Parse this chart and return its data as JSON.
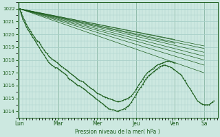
{
  "bg_color": "#cce8e0",
  "grid_color": "#a8cfc8",
  "line_color": "#1a5c1a",
  "xlabel": "Pression niveau de la mer( hPa )",
  "ylim": [
    1013.5,
    1022.5
  ],
  "yticks": [
    1014,
    1015,
    1016,
    1017,
    1018,
    1019,
    1020,
    1021,
    1022
  ],
  "days": [
    "Lun",
    "Mar",
    "Mer",
    "Jeu",
    "Ven",
    "Sa"
  ],
  "day_positions": [
    0,
    1,
    2,
    3,
    4,
    4.75
  ],
  "xlim": [
    -0.05,
    5.1
  ],
  "fan_lines": [
    {
      "x": [
        0,
        4.75
      ],
      "y": [
        1022.0,
        1017.0
      ]
    },
    {
      "x": [
        0,
        4.75
      ],
      "y": [
        1022.0,
        1017.6
      ]
    },
    {
      "x": [
        0,
        4.75
      ],
      "y": [
        1022.0,
        1018.0
      ]
    },
    {
      "x": [
        0,
        4.75
      ],
      "y": [
        1022.0,
        1018.3
      ]
    },
    {
      "x": [
        0,
        4.75
      ],
      "y": [
        1022.0,
        1018.6
      ]
    },
    {
      "x": [
        0,
        4.75
      ],
      "y": [
        1022.0,
        1018.9
      ]
    },
    {
      "x": [
        0,
        4.75
      ],
      "y": [
        1022.0,
        1019.1
      ]
    },
    {
      "x": [
        0,
        4.0
      ],
      "y": [
        1022.0,
        1019.3
      ]
    },
    {
      "x": [
        0,
        4.0
      ],
      "y": [
        1022.0,
        1019.6
      ]
    }
  ],
  "detail_line": {
    "x": [
      0.0,
      0.04,
      0.08,
      0.13,
      0.17,
      0.21,
      0.25,
      0.29,
      0.33,
      0.38,
      0.42,
      0.46,
      0.5,
      0.54,
      0.58,
      0.63,
      0.67,
      0.71,
      0.75,
      0.79,
      0.83,
      0.88,
      0.92,
      0.96,
      1.0,
      1.04,
      1.08,
      1.13,
      1.17,
      1.21,
      1.25,
      1.29,
      1.33,
      1.38,
      1.42,
      1.46,
      1.5,
      1.54,
      1.58,
      1.63,
      1.67,
      1.71,
      1.75,
      1.79,
      1.83,
      1.88,
      1.92,
      1.96,
      2.0,
      2.04,
      2.08,
      2.13,
      2.17,
      2.21,
      2.25,
      2.29,
      2.33,
      2.38,
      2.42,
      2.46,
      2.5,
      2.54,
      2.58,
      2.63,
      2.67,
      2.71,
      2.75,
      2.79,
      2.83,
      2.88,
      2.92,
      2.96,
      3.0,
      3.04,
      3.08,
      3.13,
      3.17,
      3.21,
      3.25,
      3.29,
      3.33,
      3.38,
      3.42,
      3.46,
      3.5,
      3.54,
      3.58,
      3.63,
      3.67,
      3.71,
      3.75,
      3.79,
      3.83,
      3.88,
      3.92,
      3.96,
      4.0,
      4.04,
      4.08,
      4.13,
      4.17,
      4.21,
      4.25,
      4.29,
      4.33,
      4.38,
      4.42,
      4.46,
      4.5,
      4.54,
      4.58,
      4.63,
      4.67,
      4.71,
      4.75,
      4.79,
      4.83,
      4.88,
      4.92,
      4.96,
      5.0
    ],
    "y": [
      1022.0,
      1021.6,
      1021.2,
      1020.9,
      1020.6,
      1020.4,
      1020.2,
      1020.0,
      1019.8,
      1019.6,
      1019.4,
      1019.2,
      1019.0,
      1018.8,
      1018.6,
      1018.4,
      1018.2,
      1018.0,
      1017.8,
      1017.7,
      1017.6,
      1017.5,
      1017.4,
      1017.4,
      1017.3,
      1017.2,
      1017.1,
      1017.0,
      1016.9,
      1016.8,
      1016.6,
      1016.5,
      1016.4,
      1016.3,
      1016.2,
      1016.1,
      1016.0,
      1016.0,
      1015.9,
      1015.8,
      1015.7,
      1015.6,
      1015.5,
      1015.4,
      1015.3,
      1015.2,
      1015.1,
      1015.0,
      1014.9,
      1014.8,
      1014.7,
      1014.6,
      1014.5,
      1014.4,
      1014.3,
      1014.2,
      1014.15,
      1014.1,
      1014.1,
      1014.05,
      1014.0,
      1014.0,
      1014.05,
      1014.1,
      1014.15,
      1014.2,
      1014.3,
      1014.4,
      1014.5,
      1014.7,
      1014.9,
      1015.1,
      1015.3,
      1015.5,
      1015.7,
      1015.9,
      1016.1,
      1016.3,
      1016.5,
      1016.65,
      1016.8,
      1016.9,
      1017.0,
      1017.1,
      1017.2,
      1017.3,
      1017.4,
      1017.5,
      1017.55,
      1017.6,
      1017.6,
      1017.55,
      1017.5,
      1017.45,
      1017.4,
      1017.3,
      1017.2,
      1017.1,
      1017.0,
      1016.9,
      1016.8,
      1016.6,
      1016.4,
      1016.2,
      1016.0,
      1015.8,
      1015.6,
      1015.4,
      1015.2,
      1015.0,
      1014.8,
      1014.7,
      1014.6,
      1014.55,
      1014.5,
      1014.5,
      1014.5,
      1014.5,
      1014.6,
      1014.7,
      1014.8
    ]
  },
  "curved_lines": [
    {
      "x": [
        0.0,
        0.04,
        0.08,
        0.13,
        0.17,
        0.21,
        0.25,
        0.29,
        0.33,
        0.38,
        0.42,
        0.46,
        0.5,
        0.54,
        0.58,
        0.63,
        0.67,
        0.71,
        0.75,
        0.79,
        0.83,
        0.88,
        0.92,
        0.96,
        1.0,
        1.04,
        1.08,
        1.13,
        1.17,
        1.21,
        1.25,
        1.29,
        1.33,
        1.38,
        1.42,
        1.46,
        1.5,
        1.54,
        1.58,
        1.63,
        1.67,
        1.71,
        1.75,
        1.79,
        1.83,
        1.88,
        1.92,
        1.96,
        2.0,
        2.04,
        2.08,
        2.13,
        2.17,
        2.21,
        2.25,
        2.29,
        2.33,
        2.38,
        2.42,
        2.46,
        2.5,
        2.54,
        2.58,
        2.63,
        2.67,
        2.71,
        2.75,
        2.79,
        2.83,
        2.88,
        2.92,
        2.96,
        3.0,
        3.04,
        3.08,
        3.13,
        3.17,
        3.21,
        3.25,
        3.29,
        3.33,
        3.38,
        3.42,
        3.46,
        3.5,
        3.54,
        3.58,
        3.63,
        3.67,
        3.71,
        3.75,
        3.79,
        3.83,
        3.88,
        3.92,
        3.96,
        4.0
      ],
      "y": [
        1022.0,
        1021.7,
        1021.4,
        1021.1,
        1020.8,
        1020.6,
        1020.4,
        1020.2,
        1020.0,
        1019.8,
        1019.6,
        1019.5,
        1019.4,
        1019.2,
        1019.0,
        1018.8,
        1018.6,
        1018.5,
        1018.3,
        1018.2,
        1018.1,
        1018.0,
        1017.9,
        1017.8,
        1017.7,
        1017.6,
        1017.5,
        1017.4,
        1017.3,
        1017.2,
        1017.1,
        1017.0,
        1016.9,
        1016.8,
        1016.7,
        1016.6,
        1016.5,
        1016.4,
        1016.35,
        1016.3,
        1016.2,
        1016.1,
        1016.0,
        1015.9,
        1015.8,
        1015.7,
        1015.6,
        1015.5,
        1015.4,
        1015.35,
        1015.3,
        1015.2,
        1015.15,
        1015.1,
        1015.05,
        1015.0,
        1014.95,
        1014.9,
        1014.85,
        1014.8,
        1014.75,
        1014.75,
        1014.75,
        1014.8,
        1014.85,
        1014.9,
        1014.95,
        1015.0,
        1015.1,
        1015.2,
        1015.35,
        1015.5,
        1015.7,
        1015.9,
        1016.1,
        1016.3,
        1016.5,
        1016.7,
        1016.85,
        1017.0,
        1017.1,
        1017.2,
        1017.3,
        1017.4,
        1017.5,
        1017.6,
        1017.65,
        1017.7,
        1017.75,
        1017.8,
        1017.85,
        1017.9,
        1017.9,
        1017.88,
        1017.85,
        1017.8,
        1017.75
      ]
    }
  ]
}
